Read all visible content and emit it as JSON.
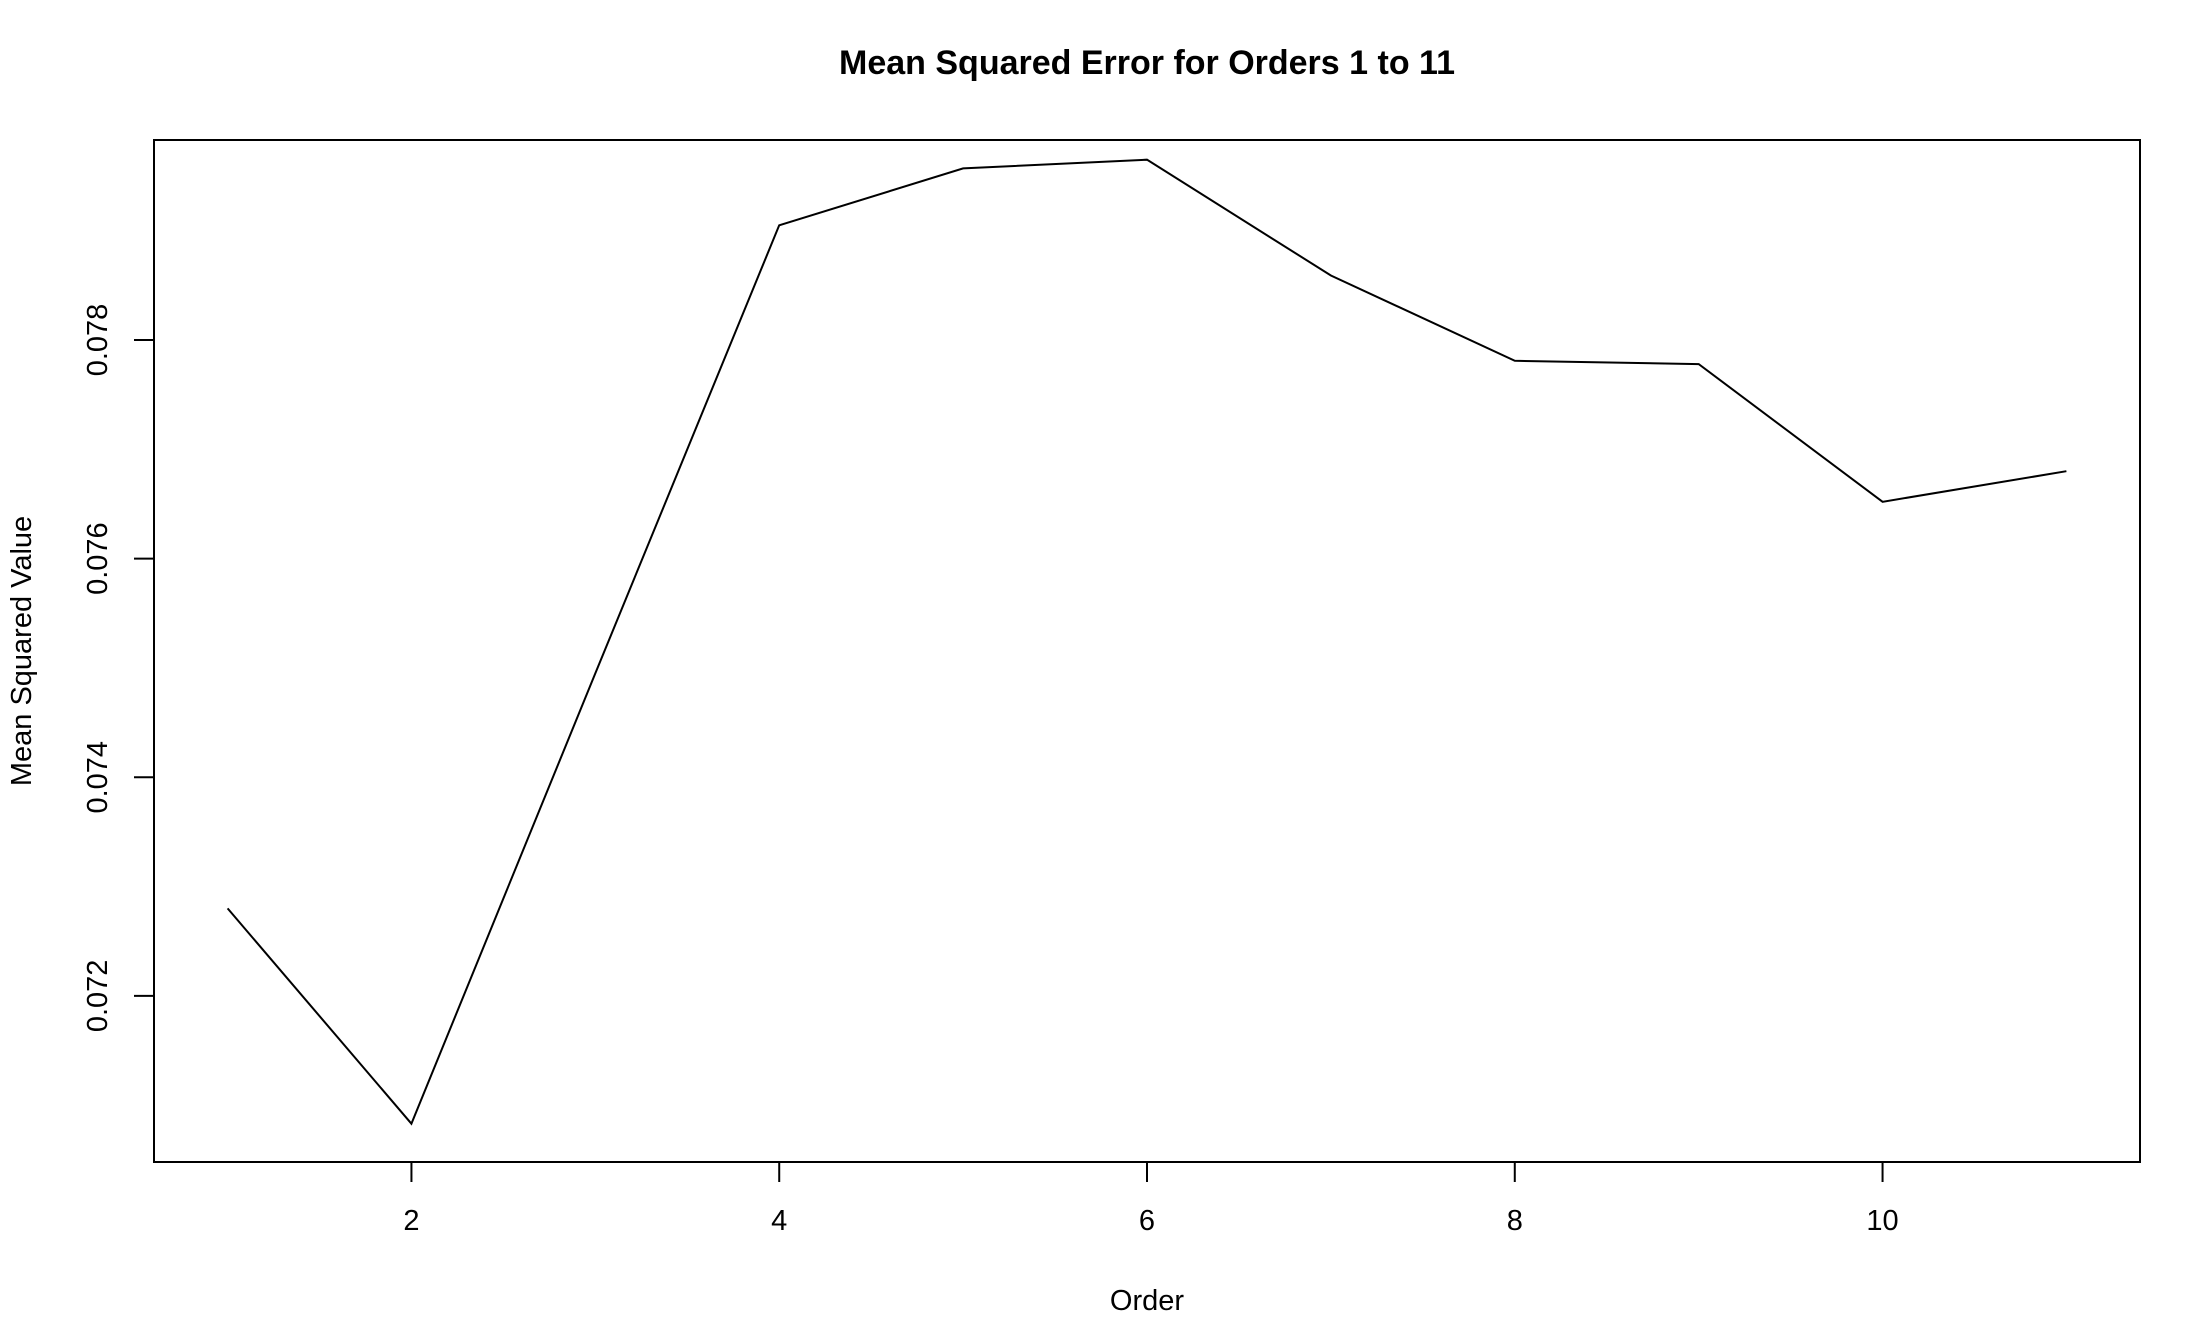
{
  "chart_data": {
    "type": "line",
    "title": "Mean Squared Error for Orders 1 to 11",
    "xlabel": "Order",
    "ylabel": "Mean Squared Value",
    "x": [
      1,
      2,
      3,
      4,
      5,
      6,
      7,
      8,
      9,
      10,
      11
    ],
    "series": [
      {
        "values": [
          0.0728,
          0.07083,
          0.07495,
          0.07905,
          0.07957,
          0.07965,
          0.07859,
          0.07781,
          0.07778,
          0.07652,
          0.0768
        ]
      }
    ],
    "xlim": [
      0.6,
      11.4
    ],
    "ylim": [
      0.07048,
      0.07983
    ],
    "xticks": [
      2,
      4,
      6,
      8,
      10
    ],
    "xtick_labels": [
      "2",
      "4",
      "6",
      "8",
      "10"
    ],
    "yticks": [
      0.072,
      0.074,
      0.076,
      0.078
    ],
    "ytick_labels": [
      "0.072",
      "0.074",
      "0.076",
      "0.078"
    ],
    "grid": false,
    "legend": "none",
    "colors": {
      "line": "#000000",
      "background": "#ffffff"
    }
  }
}
